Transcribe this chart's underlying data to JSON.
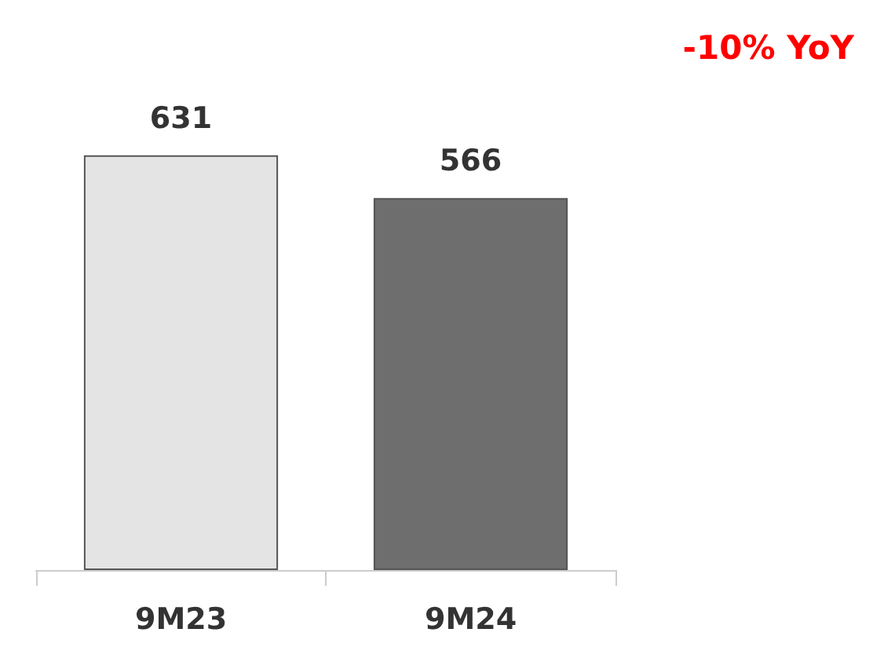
{
  "chart_data": {
    "type": "bar",
    "categories": [
      "9M23",
      "9M24"
    ],
    "values": [
      631,
      566
    ],
    "colors": [
      "#e4e4e4",
      "#6e6e6e"
    ],
    "data_labels": true,
    "annotations": [
      "-10% YoY"
    ]
  }
}
